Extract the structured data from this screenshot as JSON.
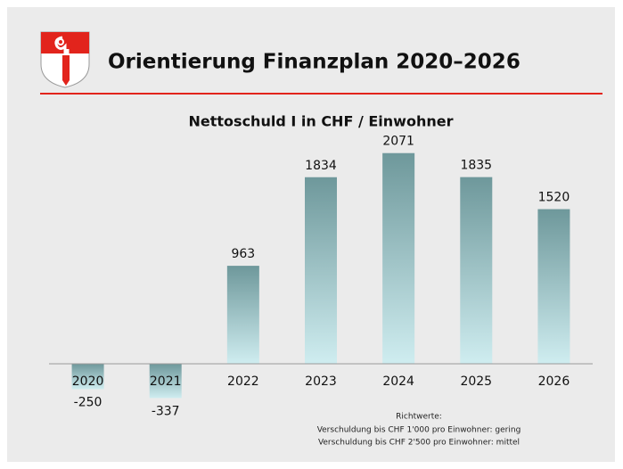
{
  "header": {
    "title": "Orientierung Finanzplan 2020–2026"
  },
  "chart_data": {
    "type": "bar",
    "title": "Nettoschuld I in CHF / Einwohner",
    "categories": [
      "2020",
      "2021",
      "2022",
      "2023",
      "2024",
      "2025",
      "2026"
    ],
    "values": [
      -250,
      -337,
      963,
      1834,
      2071,
      1835,
      1520
    ],
    "ylim": [
      -500,
      2200
    ]
  },
  "notes": {
    "heading": "Richtwerte:",
    "lines": [
      "Verschuldung bis CHF 1'000 pro Einwohner: gering",
      "Verschuldung bis CHF 2'500 pro Einwohner: mittel"
    ]
  }
}
